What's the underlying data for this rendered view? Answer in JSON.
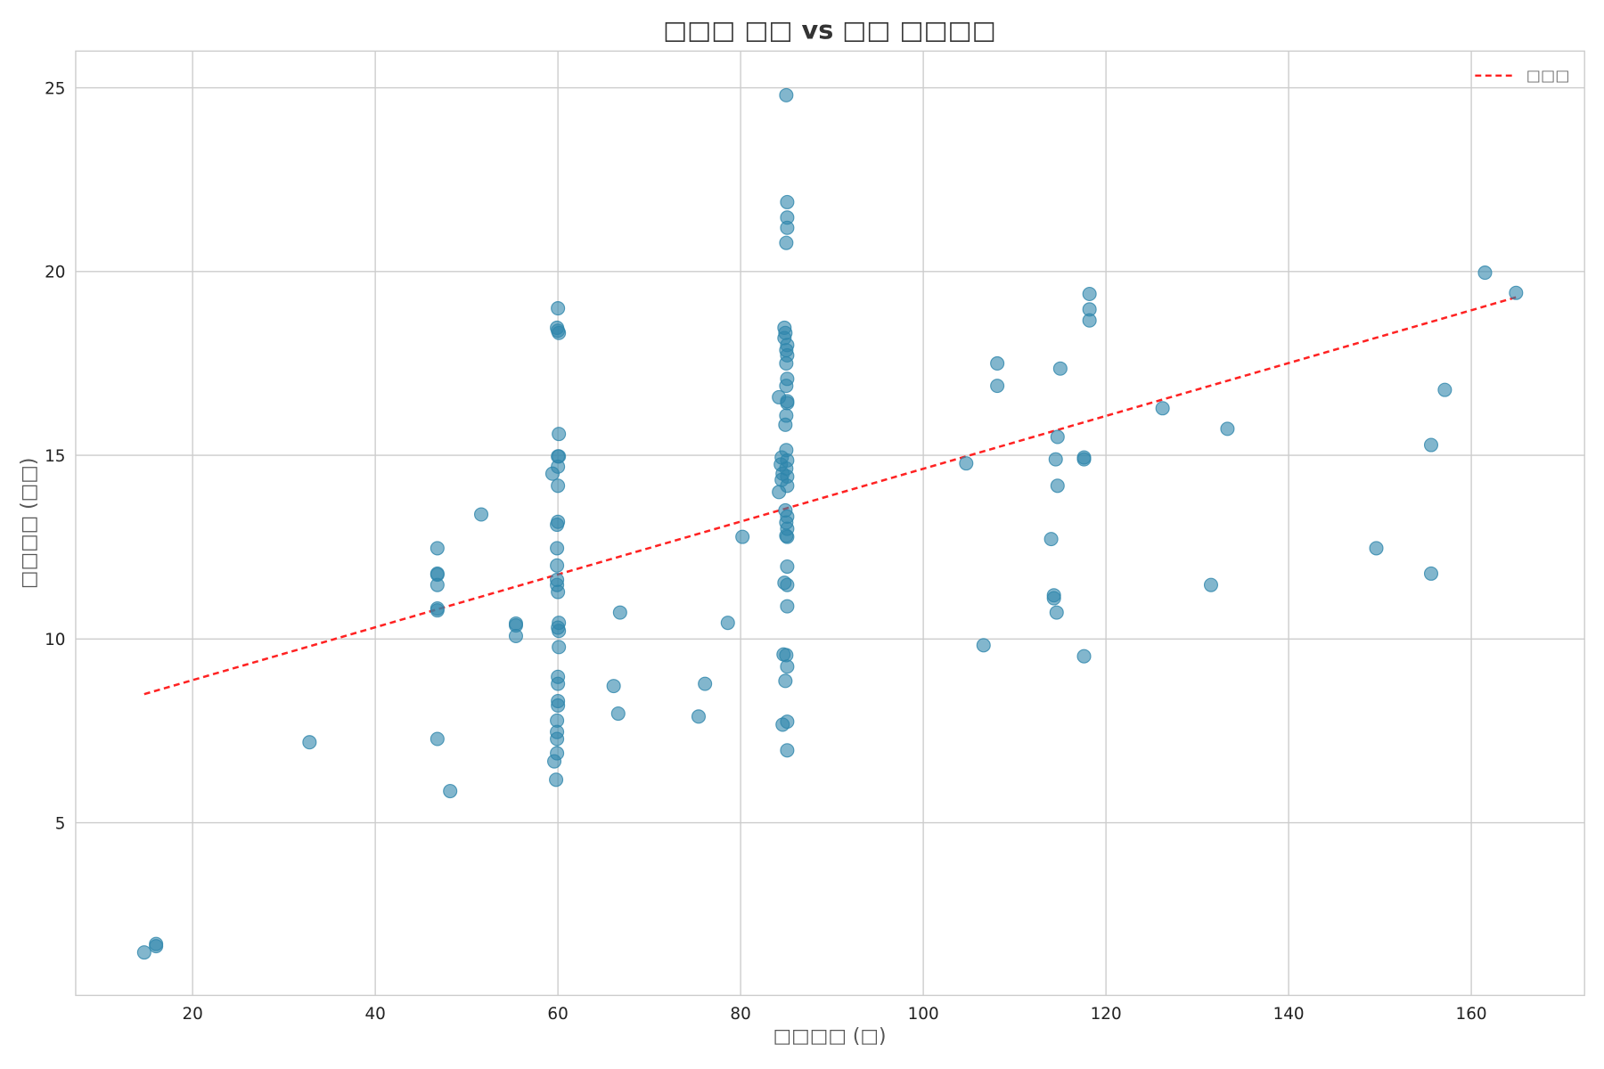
{
  "chart_data": {
    "type": "scatter",
    "title": "□□□ □□ vs □□ □□□□",
    "xlabel": "□□□□ (□)",
    "ylabel": "□□□□ (□□)",
    "xlim": [
      7.2,
      172.4
    ],
    "ylim": [
      0.3,
      26.0
    ],
    "xticks": [
      20,
      40,
      60,
      80,
      100,
      120,
      140,
      160
    ],
    "yticks": [
      5,
      10,
      15,
      20,
      25
    ],
    "grid": true,
    "legend": {
      "position": "top-right",
      "entries": [
        "□□□"
      ]
    },
    "colors": {
      "points": "#2e86ab",
      "trend": "#ff2222",
      "grid": "#cccccc"
    },
    "series": [
      {
        "name": "points",
        "points": [
          [
            14.7,
            1.47
          ],
          [
            16.0,
            1.64
          ],
          [
            16.0,
            1.7
          ],
          [
            32.8,
            7.19
          ],
          [
            46.8,
            12.47
          ],
          [
            46.8,
            11.78
          ],
          [
            46.8,
            11.75
          ],
          [
            46.8,
            11.47
          ],
          [
            46.8,
            10.83
          ],
          [
            46.8,
            10.78
          ],
          [
            46.8,
            7.28
          ],
          [
            48.2,
            5.86
          ],
          [
            51.6,
            13.39
          ],
          [
            55.4,
            10.42
          ],
          [
            55.4,
            10.37
          ],
          [
            55.4,
            10.08
          ],
          [
            60,
            19.0
          ],
          [
            59.9,
            18.47
          ],
          [
            60,
            18.39
          ],
          [
            60.1,
            18.33
          ],
          [
            60.1,
            15.58
          ],
          [
            60,
            14.97
          ],
          [
            60.1,
            14.97
          ],
          [
            60,
            14.69
          ],
          [
            59.4,
            14.5
          ],
          [
            60,
            14.17
          ],
          [
            60,
            13.19
          ],
          [
            59.9,
            13.11
          ],
          [
            59.9,
            12.47
          ],
          [
            59.9,
            12.0
          ],
          [
            59.9,
            11.61
          ],
          [
            59.9,
            11.47
          ],
          [
            60,
            11.28
          ],
          [
            60.1,
            10.44
          ],
          [
            60,
            10.31
          ],
          [
            60.1,
            10.22
          ],
          [
            60.1,
            9.78
          ],
          [
            60,
            8.97
          ],
          [
            60,
            8.78
          ],
          [
            60,
            8.31
          ],
          [
            60,
            8.19
          ],
          [
            59.9,
            7.78
          ],
          [
            59.9,
            7.47
          ],
          [
            59.9,
            7.28
          ],
          [
            59.9,
            6.89
          ],
          [
            59.6,
            6.67
          ],
          [
            59.8,
            6.17
          ],
          [
            66.1,
            8.72
          ],
          [
            66.6,
            7.97
          ],
          [
            66.8,
            10.72
          ],
          [
            75.4,
            7.89
          ],
          [
            76.1,
            8.78
          ],
          [
            78.6,
            10.44
          ],
          [
            80.2,
            12.78
          ],
          [
            85,
            24.8
          ],
          [
            85.1,
            21.89
          ],
          [
            85.1,
            21.47
          ],
          [
            85.1,
            21.19
          ],
          [
            85,
            20.78
          ],
          [
            84.8,
            18.47
          ],
          [
            84.9,
            18.33
          ],
          [
            84.8,
            18.19
          ],
          [
            85.1,
            18.0
          ],
          [
            85,
            17.86
          ],
          [
            85.1,
            17.72
          ],
          [
            85,
            17.5
          ],
          [
            85.1,
            17.08
          ],
          [
            85,
            16.89
          ],
          [
            84.2,
            16.58
          ],
          [
            85.1,
            16.47
          ],
          [
            85.1,
            16.42
          ],
          [
            85,
            16.08
          ],
          [
            84.9,
            15.83
          ],
          [
            85,
            15.14
          ],
          [
            84.5,
            14.94
          ],
          [
            85.1,
            14.86
          ],
          [
            84.4,
            14.75
          ],
          [
            85,
            14.64
          ],
          [
            84.6,
            14.5
          ],
          [
            85.1,
            14.42
          ],
          [
            84.5,
            14.33
          ],
          [
            85.1,
            14.17
          ],
          [
            84.2,
            14.0
          ],
          [
            84.9,
            13.5
          ],
          [
            85.1,
            13.33
          ],
          [
            85,
            13.17
          ],
          [
            85.1,
            13.0
          ],
          [
            85,
            12.81
          ],
          [
            85.1,
            12.78
          ],
          [
            85.1,
            11.97
          ],
          [
            84.8,
            11.53
          ],
          [
            85.1,
            11.47
          ],
          [
            85.1,
            10.89
          ],
          [
            84.7,
            9.58
          ],
          [
            85,
            9.56
          ],
          [
            85.1,
            9.25
          ],
          [
            84.9,
            8.86
          ],
          [
            85.1,
            7.75
          ],
          [
            84.6,
            7.67
          ],
          [
            85.1,
            6.97
          ],
          [
            104.7,
            14.78
          ],
          [
            106.6,
            9.83
          ],
          [
            108.1,
            17.5
          ],
          [
            108.1,
            16.89
          ],
          [
            114.0,
            12.72
          ],
          [
            114.3,
            11.19
          ],
          [
            114.3,
            11.11
          ],
          [
            114.5,
            14.89
          ],
          [
            114.6,
            10.72
          ],
          [
            114.7,
            15.5
          ],
          [
            114.7,
            14.17
          ],
          [
            115.0,
            17.36
          ],
          [
            117.6,
            14.94
          ],
          [
            117.6,
            14.89
          ],
          [
            117.6,
            9.53
          ],
          [
            118.2,
            19.39
          ],
          [
            118.2,
            18.97
          ],
          [
            118.2,
            18.67
          ],
          [
            126.2,
            16.28
          ],
          [
            131.5,
            11.47
          ],
          [
            133.3,
            15.72
          ],
          [
            149.6,
            12.47
          ],
          [
            155.6,
            15.28
          ],
          [
            155.6,
            11.78
          ],
          [
            157.1,
            16.78
          ],
          [
            161.5,
            19.97
          ],
          [
            164.9,
            19.42
          ]
        ]
      },
      {
        "name": "□□□",
        "type": "line",
        "style": "dashed",
        "points": [
          [
            14.7,
            8.5
          ],
          [
            164.9,
            19.3
          ]
        ]
      }
    ]
  }
}
